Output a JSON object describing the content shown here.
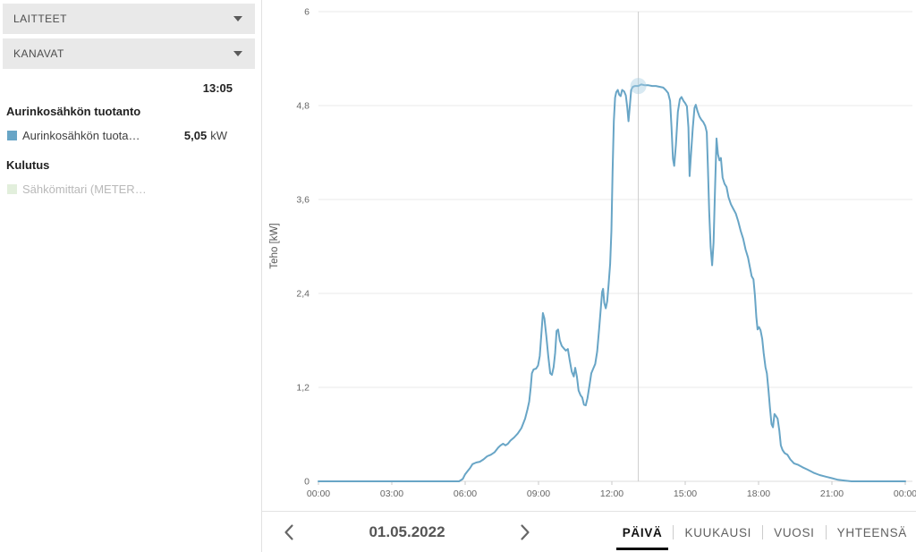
{
  "sidebar": {
    "dropdowns": [
      {
        "label": "LAITTEET"
      },
      {
        "label": "KANAVAT"
      }
    ],
    "time": "13:05",
    "groups": [
      {
        "title": "Aurinkosähkön tuotanto",
        "items": [
          {
            "label": "Aurinkosähkön tuota…",
            "value": "5,05",
            "unit": "kW",
            "swatch_color": "#68a5c6",
            "enabled": true
          }
        ]
      },
      {
        "title": "Kulutus",
        "items": [
          {
            "label": "Sähkömittari (METER…",
            "value": "",
            "unit": "",
            "swatch_color": "#e2efdc",
            "enabled": false
          }
        ]
      }
    ]
  },
  "chart_data": {
    "type": "line",
    "title": "",
    "xlabel": "",
    "ylabel": "Teho [kW]",
    "ylim": [
      0,
      6
    ],
    "xlim_hours": [
      0,
      24
    ],
    "grid": "horizontal",
    "legend_position": "sidebar-left",
    "y_ticks": [
      {
        "v": 0,
        "label": "0"
      },
      {
        "v": 1.2,
        "label": "1,2"
      },
      {
        "v": 2.4,
        "label": "2,4"
      },
      {
        "v": 3.6,
        "label": "3,6"
      },
      {
        "v": 4.8,
        "label": "4,8"
      },
      {
        "v": 6,
        "label": "6"
      }
    ],
    "x_ticks": [
      {
        "h": 0,
        "label": "00:00"
      },
      {
        "h": 3,
        "label": "03:00"
      },
      {
        "h": 6,
        "label": "06:00"
      },
      {
        "h": 9,
        "label": "09:00"
      },
      {
        "h": 12,
        "label": "12:00"
      },
      {
        "h": 15,
        "label": "15:00"
      },
      {
        "h": 18,
        "label": "18:00"
      },
      {
        "h": 21,
        "label": "21:00"
      },
      {
        "h": 24,
        "label": "00:00"
      }
    ],
    "crosshair": {
      "time_hours": 13.083,
      "time_label": "13:05",
      "value_kw": 5.05
    },
    "series": [
      {
        "name": "Aurinkosähkön tuotanto",
        "unit": "kW",
        "color": "#68a5c6",
        "points": [
          [
            0,
            0
          ],
          [
            0.5,
            0
          ],
          [
            1,
            0
          ],
          [
            1.5,
            0
          ],
          [
            2,
            0
          ],
          [
            2.5,
            0
          ],
          [
            3,
            0
          ],
          [
            3.5,
            0
          ],
          [
            4,
            0
          ],
          [
            4.5,
            0
          ],
          [
            5,
            0
          ],
          [
            5.4,
            0
          ],
          [
            5.75,
            0
          ],
          [
            5.9,
            0.03
          ],
          [
            6.0,
            0.09
          ],
          [
            6.1,
            0.13
          ],
          [
            6.2,
            0.17
          ],
          [
            6.3,
            0.22
          ],
          [
            6.45,
            0.24
          ],
          [
            6.6,
            0.25
          ],
          [
            6.75,
            0.28
          ],
          [
            6.9,
            0.32
          ],
          [
            7.05,
            0.34
          ],
          [
            7.2,
            0.37
          ],
          [
            7.35,
            0.43
          ],
          [
            7.45,
            0.46
          ],
          [
            7.55,
            0.48
          ],
          [
            7.65,
            0.46
          ],
          [
            7.75,
            0.48
          ],
          [
            7.85,
            0.52
          ],
          [
            8.0,
            0.56
          ],
          [
            8.15,
            0.61
          ],
          [
            8.3,
            0.68
          ],
          [
            8.45,
            0.8
          ],
          [
            8.55,
            0.92
          ],
          [
            8.62,
            1.02
          ],
          [
            8.68,
            1.2
          ],
          [
            8.73,
            1.38
          ],
          [
            8.8,
            1.43
          ],
          [
            8.9,
            1.44
          ],
          [
            8.98,
            1.48
          ],
          [
            9.05,
            1.6
          ],
          [
            9.12,
            1.9
          ],
          [
            9.18,
            2.15
          ],
          [
            9.24,
            2.08
          ],
          [
            9.32,
            1.86
          ],
          [
            9.4,
            1.6
          ],
          [
            9.48,
            1.38
          ],
          [
            9.55,
            1.36
          ],
          [
            9.62,
            1.46
          ],
          [
            9.68,
            1.64
          ],
          [
            9.74,
            1.92
          ],
          [
            9.8,
            1.94
          ],
          [
            9.87,
            1.8
          ],
          [
            9.95,
            1.73
          ],
          [
            10.03,
            1.7
          ],
          [
            10.12,
            1.67
          ],
          [
            10.2,
            1.69
          ],
          [
            10.28,
            1.54
          ],
          [
            10.36,
            1.4
          ],
          [
            10.44,
            1.34
          ],
          [
            10.5,
            1.45
          ],
          [
            10.57,
            1.34
          ],
          [
            10.64,
            1.16
          ],
          [
            10.72,
            1.1
          ],
          [
            10.79,
            1.07
          ],
          [
            10.86,
            0.98
          ],
          [
            10.93,
            0.97
          ],
          [
            11.0,
            1.06
          ],
          [
            11.08,
            1.22
          ],
          [
            11.16,
            1.38
          ],
          [
            11.24,
            1.44
          ],
          [
            11.32,
            1.5
          ],
          [
            11.4,
            1.66
          ],
          [
            11.48,
            1.95
          ],
          [
            11.55,
            2.22
          ],
          [
            11.6,
            2.42
          ],
          [
            11.64,
            2.46
          ],
          [
            11.69,
            2.28
          ],
          [
            11.75,
            2.21
          ],
          [
            11.81,
            2.3
          ],
          [
            11.87,
            2.52
          ],
          [
            11.93,
            2.78
          ],
          [
            11.98,
            3.2
          ],
          [
            12.03,
            3.95
          ],
          [
            12.08,
            4.6
          ],
          [
            12.13,
            4.9
          ],
          [
            12.18,
            4.97
          ],
          [
            12.24,
            5.0
          ],
          [
            12.3,
            4.94
          ],
          [
            12.36,
            4.92
          ],
          [
            12.42,
            5.0
          ],
          [
            12.5,
            4.98
          ],
          [
            12.57,
            4.93
          ],
          [
            12.63,
            4.78
          ],
          [
            12.68,
            4.6
          ],
          [
            12.73,
            4.78
          ],
          [
            12.79,
            5.0
          ],
          [
            12.86,
            5.04
          ],
          [
            12.95,
            5.05
          ],
          [
            13.08,
            5.05
          ],
          [
            13.2,
            5.07
          ],
          [
            13.35,
            5.06
          ],
          [
            13.5,
            5.06
          ],
          [
            13.65,
            5.05
          ],
          [
            13.8,
            5.05
          ],
          [
            13.95,
            5.04
          ],
          [
            14.1,
            5.03
          ],
          [
            14.2,
            5.0
          ],
          [
            14.3,
            4.96
          ],
          [
            14.38,
            4.86
          ],
          [
            14.44,
            4.52
          ],
          [
            14.5,
            4.12
          ],
          [
            14.55,
            4.03
          ],
          [
            14.62,
            4.3
          ],
          [
            14.7,
            4.72
          ],
          [
            14.78,
            4.88
          ],
          [
            14.85,
            4.91
          ],
          [
            14.93,
            4.86
          ],
          [
            15.0,
            4.83
          ],
          [
            15.07,
            4.79
          ],
          [
            15.13,
            4.52
          ],
          [
            15.18,
            3.9
          ],
          [
            15.24,
            4.2
          ],
          [
            15.31,
            4.52
          ],
          [
            15.38,
            4.77
          ],
          [
            15.43,
            4.81
          ],
          [
            15.5,
            4.73
          ],
          [
            15.58,
            4.66
          ],
          [
            15.66,
            4.62
          ],
          [
            15.74,
            4.59
          ],
          [
            15.82,
            4.54
          ],
          [
            15.88,
            4.46
          ],
          [
            15.93,
            4.0
          ],
          [
            15.98,
            3.45
          ],
          [
            16.04,
            3.0
          ],
          [
            16.1,
            2.76
          ],
          [
            16.16,
            3.05
          ],
          [
            16.22,
            3.72
          ],
          [
            16.28,
            4.38
          ],
          [
            16.34,
            4.18
          ],
          [
            16.4,
            4.1
          ],
          [
            16.46,
            4.13
          ],
          [
            16.53,
            3.88
          ],
          [
            16.61,
            3.8
          ],
          [
            16.69,
            3.76
          ],
          [
            16.77,
            3.63
          ],
          [
            16.87,
            3.54
          ],
          [
            16.97,
            3.48
          ],
          [
            17.07,
            3.42
          ],
          [
            17.17,
            3.32
          ],
          [
            17.27,
            3.2
          ],
          [
            17.37,
            3.1
          ],
          [
            17.47,
            2.96
          ],
          [
            17.57,
            2.86
          ],
          [
            17.65,
            2.73
          ],
          [
            17.72,
            2.62
          ],
          [
            17.79,
            2.58
          ],
          [
            17.85,
            2.38
          ],
          [
            17.91,
            2.1
          ],
          [
            17.96,
            1.94
          ],
          [
            18.02,
            1.97
          ],
          [
            18.08,
            1.93
          ],
          [
            18.15,
            1.82
          ],
          [
            18.21,
            1.64
          ],
          [
            18.28,
            1.46
          ],
          [
            18.34,
            1.38
          ],
          [
            18.41,
            1.15
          ],
          [
            18.47,
            0.93
          ],
          [
            18.53,
            0.73
          ],
          [
            18.59,
            0.69
          ],
          [
            18.65,
            0.86
          ],
          [
            18.72,
            0.83
          ],
          [
            18.78,
            0.8
          ],
          [
            18.85,
            0.65
          ],
          [
            18.91,
            0.46
          ],
          [
            18.98,
            0.4
          ],
          [
            19.07,
            0.36
          ],
          [
            19.18,
            0.34
          ],
          [
            19.3,
            0.28
          ],
          [
            19.45,
            0.23
          ],
          [
            19.62,
            0.21
          ],
          [
            19.8,
            0.18
          ],
          [
            20.0,
            0.15
          ],
          [
            20.25,
            0.11
          ],
          [
            20.5,
            0.08
          ],
          [
            20.75,
            0.06
          ],
          [
            21.0,
            0.04
          ],
          [
            21.25,
            0.02
          ],
          [
            21.5,
            0.01
          ],
          [
            21.8,
            0
          ],
          [
            22.2,
            0
          ],
          [
            22.6,
            0
          ],
          [
            23.0,
            0
          ],
          [
            23.5,
            0
          ],
          [
            24.0,
            0
          ]
        ]
      }
    ]
  },
  "bottom_bar": {
    "date": "01.05.2022",
    "tabs": [
      {
        "label": "PÄIVÄ",
        "active": true
      },
      {
        "label": "KUUKAUSI",
        "active": false
      },
      {
        "label": "VUOSI",
        "active": false
      },
      {
        "label": "YHTEENSÄ",
        "active": false
      }
    ]
  },
  "colors": {
    "line": "#68a5c6",
    "marker_fill": "#a9cee3",
    "grid": "#e8e8e8",
    "axis_line": "#dcdcdc",
    "crosshair": "#cccccc",
    "axis_text": "#666666",
    "dropdown_bg": "#e9e9e9",
    "divider": "#e2e2e2",
    "tab_active": "#111111",
    "tab_underline": "#0d0d0d"
  }
}
